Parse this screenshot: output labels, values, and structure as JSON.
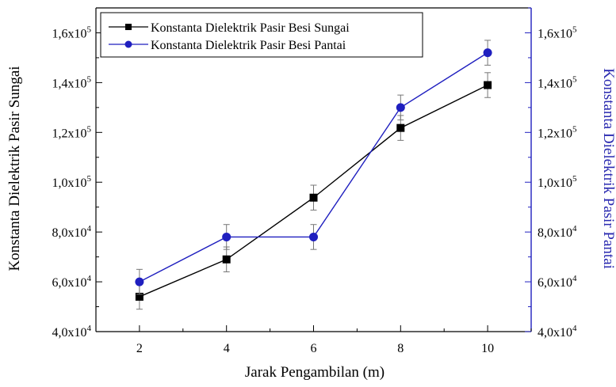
{
  "chart_data": {
    "type": "line",
    "title": "",
    "xlabel": "Jarak Pengambilan (m)",
    "ylabel_left": "Konstanta Dielektrik Pasir Sungai",
    "ylabel_right": "Konstanta Dielektrik Pasir Pantai",
    "x": [
      2,
      4,
      6,
      8,
      10
    ],
    "xlim": [
      1,
      11
    ],
    "x_ticks": [
      "2",
      "4",
      "6",
      "8",
      "10"
    ],
    "ylim": [
      40000,
      170000
    ],
    "y_ticks": [
      {
        "value": 40000,
        "mantissa": "4,0x10",
        "exp": "4"
      },
      {
        "value": 60000,
        "mantissa": "6,0x10",
        "exp": "4"
      },
      {
        "value": 80000,
        "mantissa": "8,0x10",
        "exp": "4"
      },
      {
        "value": 100000,
        "mantissa": "1,0x10",
        "exp": "5"
      },
      {
        "value": 120000,
        "mantissa": "1,2x10",
        "exp": "5"
      },
      {
        "value": 140000,
        "mantissa": "1,4x10",
        "exp": "5"
      },
      {
        "value": 160000,
        "mantissa": "1,6x10",
        "exp": "5"
      }
    ],
    "grid": false,
    "legend_position": "top-left",
    "series": [
      {
        "name": "Konstanta Dielektrik Pasir Besi Sungai",
        "axis": "left",
        "marker": "square",
        "color": "#000000",
        "values": [
          54000,
          69000,
          93800,
          121800,
          139000
        ],
        "errors": [
          5000,
          5000,
          5000,
          5000,
          5000
        ]
      },
      {
        "name": "Konstanta Dielektrik Pasir Besi Pantai",
        "axis": "right",
        "marker": "circle",
        "color": "#1f1fbf",
        "values": [
          60000,
          78000,
          78000,
          130000,
          152000
        ],
        "errors": [
          5000,
          5000,
          5000,
          5000,
          5000
        ]
      }
    ]
  }
}
